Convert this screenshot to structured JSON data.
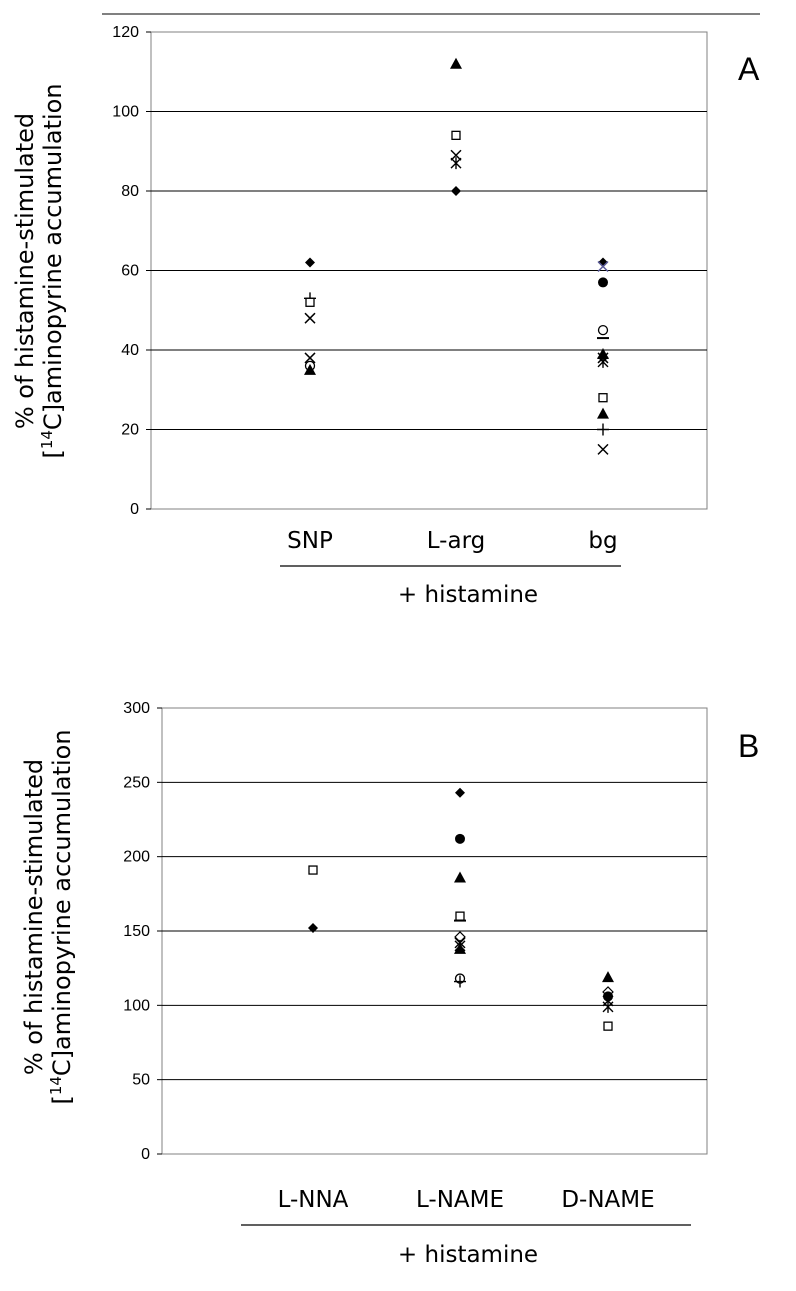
{
  "chart_data": [
    {
      "type": "scatter",
      "panel_label": "A",
      "ylabel_line1": "% of histamine-stimulated",
      "ylabel_line2_prefix": "[",
      "ylabel_line2_sup": "14",
      "ylabel_line2_rest": "C]aminopyrine accumulation",
      "ylim": [
        0,
        120
      ],
      "yticks": [
        "0",
        "20",
        "40",
        "60",
        "80",
        "100",
        "120"
      ],
      "ytick_values": [
        0,
        20,
        40,
        60,
        80,
        100,
        120
      ],
      "categories": [
        "SNP",
        "L-arg",
        "bg"
      ],
      "group_label": "+ histamine",
      "grid": true,
      "points": [
        {
          "cat": 0,
          "y": 62,
          "marker": "diamond"
        },
        {
          "cat": 0,
          "y": 53,
          "marker": "plus"
        },
        {
          "cat": 0,
          "y": 52,
          "marker": "square"
        },
        {
          "cat": 0,
          "y": 48,
          "marker": "x"
        },
        {
          "cat": 0,
          "y": 38,
          "marker": "x"
        },
        {
          "cat": 0,
          "y": 36,
          "marker": "circle"
        },
        {
          "cat": 0,
          "y": 35,
          "marker": "triangle"
        },
        {
          "cat": 1,
          "y": 112,
          "marker": "triangle"
        },
        {
          "cat": 1,
          "y": 94,
          "marker": "square"
        },
        {
          "cat": 1,
          "y": 89,
          "marker": "x"
        },
        {
          "cat": 1,
          "y": 87,
          "marker": "star"
        },
        {
          "cat": 1,
          "y": 80,
          "marker": "diamond"
        },
        {
          "cat": 2,
          "y": 62,
          "marker": "diamond"
        },
        {
          "cat": 2,
          "y": 61,
          "marker": "x",
          "color": "#5a5a9a"
        },
        {
          "cat": 2,
          "y": 57,
          "marker": "circle_filled"
        },
        {
          "cat": 2,
          "y": 45,
          "marker": "circle"
        },
        {
          "cat": 2,
          "y": 43,
          "marker": "dash"
        },
        {
          "cat": 2,
          "y": 39,
          "marker": "triangle"
        },
        {
          "cat": 2,
          "y": 38,
          "marker": "x"
        },
        {
          "cat": 2,
          "y": 37,
          "marker": "star"
        },
        {
          "cat": 2,
          "y": 28,
          "marker": "square"
        },
        {
          "cat": 2,
          "y": 24,
          "marker": "triangle"
        },
        {
          "cat": 2,
          "y": 20,
          "marker": "plus"
        },
        {
          "cat": 2,
          "y": 15,
          "marker": "x"
        }
      ]
    },
    {
      "type": "scatter",
      "panel_label": "B",
      "ylabel_line1": "% of histamine-stimulated",
      "ylabel_line2_prefix": "[",
      "ylabel_line2_sup": "14",
      "ylabel_line2_rest": "C]aminopyrine accumulation",
      "ylim": [
        0,
        300
      ],
      "yticks": [
        "0",
        "50",
        "100",
        "150",
        "200",
        "250",
        "300"
      ],
      "ytick_values": [
        0,
        50,
        100,
        150,
        200,
        250,
        300
      ],
      "categories": [
        "L-NNA",
        "L-NAME",
        "D-NAME"
      ],
      "group_label": "+ histamine",
      "grid": true,
      "points": [
        {
          "cat": 0,
          "y": 191,
          "marker": "square"
        },
        {
          "cat": 0,
          "y": 152,
          "marker": "diamond"
        },
        {
          "cat": 1,
          "y": 243,
          "marker": "diamond"
        },
        {
          "cat": 1,
          "y": 212,
          "marker": "circle_filled"
        },
        {
          "cat": 1,
          "y": 186,
          "marker": "triangle"
        },
        {
          "cat": 1,
          "y": 160,
          "marker": "square"
        },
        {
          "cat": 1,
          "y": 157,
          "marker": "dash"
        },
        {
          "cat": 1,
          "y": 146,
          "marker": "diamond_open"
        },
        {
          "cat": 1,
          "y": 142,
          "marker": "x"
        },
        {
          "cat": 1,
          "y": 140,
          "marker": "star"
        },
        {
          "cat": 1,
          "y": 138,
          "marker": "triangle"
        },
        {
          "cat": 1,
          "y": 118,
          "marker": "circle"
        },
        {
          "cat": 1,
          "y": 116,
          "marker": "plus"
        },
        {
          "cat": 2,
          "y": 119,
          "marker": "triangle"
        },
        {
          "cat": 2,
          "y": 109,
          "marker": "diamond_open"
        },
        {
          "cat": 2,
          "y": 106,
          "marker": "circle_filled"
        },
        {
          "cat": 2,
          "y": 103,
          "marker": "x"
        },
        {
          "cat": 2,
          "y": 99,
          "marker": "star"
        },
        {
          "cat": 2,
          "y": 86,
          "marker": "square"
        }
      ]
    }
  ]
}
